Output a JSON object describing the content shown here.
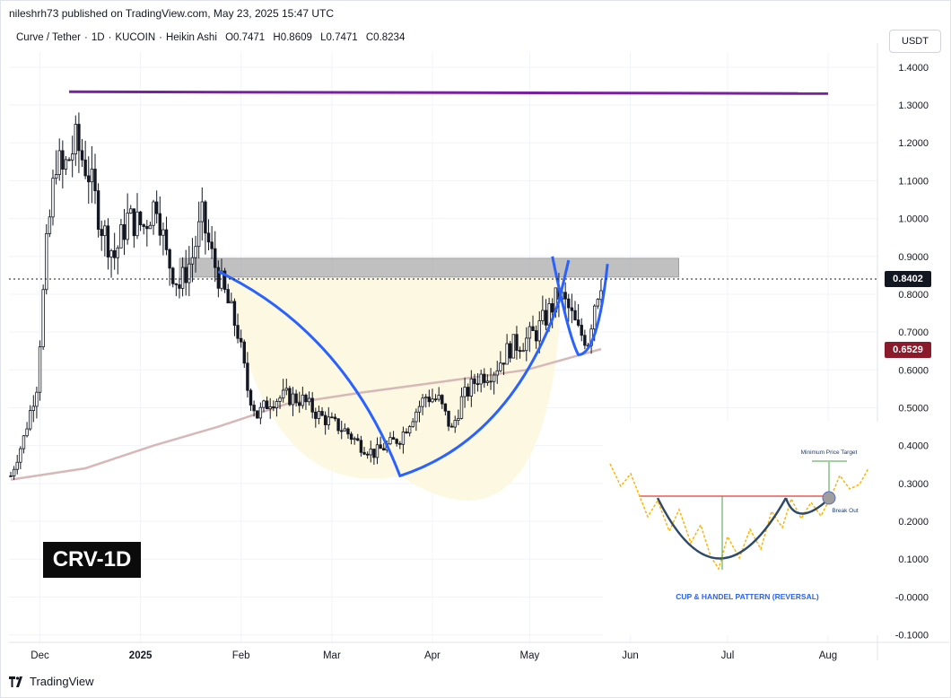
{
  "header": {
    "published": "nileshrh73 published on TradingView.com, May 23, 2025 15:47 UTC",
    "legend": {
      "symbol": "Curve / Tether",
      "interval": "1D",
      "exchange": "KUCOIN",
      "chart_style": "Heikin Ashi",
      "open": "O0.7471",
      "high": "H0.8609",
      "low": "L0.7471",
      "close": "C0.8234"
    },
    "currency": "USDT"
  },
  "footer": {
    "brand": "TradingView"
  },
  "overlay": {
    "ticker_label": "CRV-1D"
  },
  "inset": {
    "title": "CUP & HANDEL PATTERN (REVERSAL)",
    "target_label": "Minimum Price Target",
    "breakout_label": "Break Out"
  },
  "colors": {
    "up": "#131722",
    "down": "#131722",
    "resistance_line": "#7b1fa2",
    "cup_curve": "#2962ff",
    "ma": "#d7b8b8",
    "zone": "#9e9e9e",
    "cup_fill": "#fdf8e1",
    "last_price_bg": "#131722",
    "ma_price_bg": "#8b1a2b"
  },
  "chart_data": {
    "type": "candlestick",
    "y_axis": {
      "ylim": [
        -0.12,
        1.44
      ],
      "ticks": [
        "1.4000",
        "1.3000",
        "1.2000",
        "1.1000",
        "1.0000",
        "0.9000",
        "0.8000",
        "0.7000",
        "0.6000",
        "0.5000",
        "0.4000",
        "0.3000",
        "0.2000",
        "0.1000",
        "-0.0000",
        "-0.1000"
      ]
    },
    "x_axis": {
      "labels": [
        "Dec",
        "2025",
        "Feb",
        "Mar",
        "Apr",
        "May",
        "Jun",
        "Jul",
        "Aug"
      ]
    },
    "last_price": "0.8402",
    "ma_price": "0.6529",
    "resistance_level": 1.335,
    "supply_zone": [
      0.845,
      0.895
    ],
    "cup_bottom": 0.32,
    "handle_bottom": 0.64,
    "series": [
      {
        "name": "Heikin Ashi closes (approx.)",
        "points": [
          [
            "2024-11-22",
            0.32
          ],
          [
            "2024-11-26",
            0.42
          ],
          [
            "2024-11-30",
            0.56
          ],
          [
            "2024-12-03",
            0.92
          ],
          [
            "2024-12-06",
            1.16
          ],
          [
            "2024-12-08",
            1.12
          ],
          [
            "2024-12-12",
            1.2
          ],
          [
            "2024-12-16",
            1.12
          ],
          [
            "2024-12-20",
            0.98
          ],
          [
            "2024-12-24",
            0.9
          ],
          [
            "2024-12-28",
            1.0
          ],
          [
            "2025-01-02",
            0.98
          ],
          [
            "2025-01-06",
            1.05
          ],
          [
            "2025-01-09",
            0.9
          ],
          [
            "2025-01-13",
            0.82
          ],
          [
            "2025-01-17",
            0.9
          ],
          [
            "2025-01-20",
            1.0
          ],
          [
            "2025-01-23",
            0.9
          ],
          [
            "2025-01-27",
            0.8
          ],
          [
            "2025-01-31",
            0.7
          ],
          [
            "2025-02-03",
            0.55
          ],
          [
            "2025-02-06",
            0.48
          ],
          [
            "2025-02-10",
            0.52
          ],
          [
            "2025-02-15",
            0.53
          ],
          [
            "2025-02-20",
            0.52
          ],
          [
            "2025-02-25",
            0.48
          ],
          [
            "2025-03-01",
            0.46
          ],
          [
            "2025-03-05",
            0.44
          ],
          [
            "2025-03-10",
            0.4
          ],
          [
            "2025-03-14",
            0.38
          ],
          [
            "2025-03-18",
            0.4
          ],
          [
            "2025-03-22",
            0.42
          ],
          [
            "2025-03-26",
            0.48
          ],
          [
            "2025-03-30",
            0.53
          ],
          [
            "2025-04-03",
            0.52
          ],
          [
            "2025-04-07",
            0.44
          ],
          [
            "2025-04-10",
            0.52
          ],
          [
            "2025-04-15",
            0.58
          ],
          [
            "2025-04-20",
            0.6
          ],
          [
            "2025-04-25",
            0.66
          ],
          [
            "2025-04-30",
            0.68
          ],
          [
            "2025-05-03",
            0.7
          ],
          [
            "2025-05-06",
            0.74
          ],
          [
            "2025-05-10",
            0.8
          ],
          [
            "2025-05-13",
            0.76
          ],
          [
            "2025-05-16",
            0.7
          ],
          [
            "2025-05-19",
            0.68
          ],
          [
            "2025-05-21",
            0.78
          ],
          [
            "2025-05-23",
            0.84
          ]
        ]
      },
      {
        "name": "Moving average (approx.)",
        "points": [
          [
            "2024-11-22",
            0.31
          ],
          [
            "2024-12-15",
            0.34
          ],
          [
            "2025-01-05",
            0.4
          ],
          [
            "2025-01-25",
            0.45
          ],
          [
            "2025-02-15",
            0.51
          ],
          [
            "2025-03-10",
            0.54
          ],
          [
            "2025-04-05",
            0.57
          ],
          [
            "2025-04-30",
            0.6
          ],
          [
            "2025-05-23",
            0.655
          ]
        ]
      }
    ]
  }
}
